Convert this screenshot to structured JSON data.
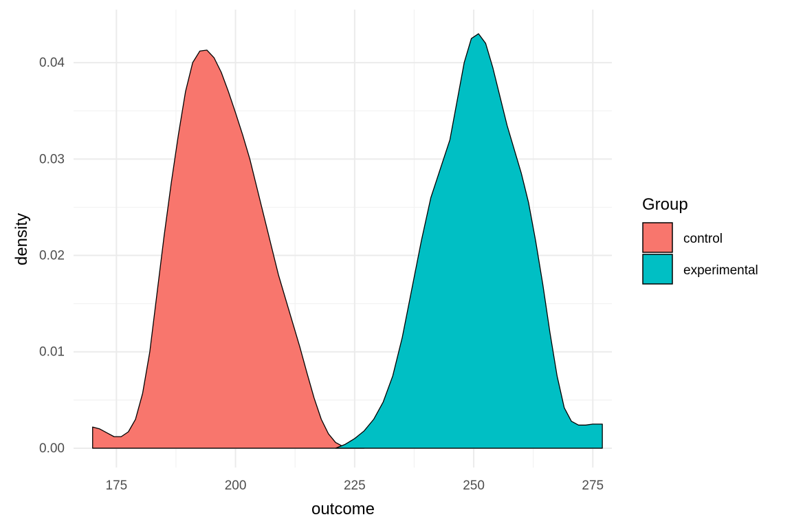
{
  "chart_data": {
    "type": "area",
    "subtype": "density",
    "xlabel": "outcome",
    "ylabel": "density",
    "xlim": [
      166,
      279
    ],
    "ylim": [
      -0.002,
      0.0455
    ],
    "x_ticks": [
      175,
      200,
      225,
      250,
      275
    ],
    "x_tick_labels": [
      "175",
      "200",
      "225",
      "250",
      "275"
    ],
    "x_minor_ticks": [
      187.5,
      212.5,
      237.5,
      262.5
    ],
    "y_ticks": [
      0.0,
      0.01,
      0.02,
      0.03,
      0.04
    ],
    "y_tick_labels": [
      "0.00",
      "0.01",
      "0.02",
      "0.03",
      "0.04"
    ],
    "y_minor_ticks": [
      0.005,
      0.015,
      0.025,
      0.035
    ],
    "grid": true,
    "legend": {
      "title": "Group",
      "position": "right"
    },
    "series": [
      {
        "name": "control",
        "color": "#F8766D",
        "x": [
          170.0,
          171.5,
          173.0,
          174.5,
          176.0,
          177.5,
          179.0,
          180.5,
          182.0,
          183.5,
          185.0,
          186.5,
          188.0,
          189.5,
          191.0,
          192.5,
          194.0,
          195.5,
          197.0,
          198.5,
          200.0,
          201.5,
          203.0,
          204.5,
          206.0,
          207.5,
          209.0,
          210.5,
          212.0,
          213.5,
          215.0,
          216.5,
          218.0,
          219.5,
          221.0,
          222.5,
          224.0,
          225.5,
          227.0
        ],
        "y": [
          0.0022,
          0.002,
          0.0016,
          0.0012,
          0.0012,
          0.0017,
          0.003,
          0.0057,
          0.01,
          0.016,
          0.022,
          0.0275,
          0.0325,
          0.037,
          0.04,
          0.0412,
          0.0413,
          0.0405,
          0.039,
          0.037,
          0.0348,
          0.0325,
          0.03,
          0.027,
          0.024,
          0.021,
          0.018,
          0.0155,
          0.013,
          0.0105,
          0.0078,
          0.0052,
          0.003,
          0.0015,
          0.0006,
          0.0002,
          0.0001,
          0.0,
          0.0
        ]
      },
      {
        "name": "experimental",
        "color": "#00BFC4",
        "x": [
          221.0,
          223.0,
          225.0,
          227.0,
          229.0,
          231.0,
          233.0,
          235.0,
          237.0,
          239.0,
          241.0,
          243.0,
          245.0,
          246.5,
          248.0,
          249.5,
          251.0,
          252.5,
          254.0,
          255.5,
          257.0,
          258.5,
          260.0,
          261.5,
          263.0,
          264.5,
          266.0,
          267.5,
          269.0,
          270.5,
          272.0,
          273.5,
          275.0,
          276.5,
          277.0
        ],
        "y": [
          0.0,
          0.0004,
          0.001,
          0.0018,
          0.003,
          0.0048,
          0.0075,
          0.0115,
          0.0165,
          0.0215,
          0.026,
          0.029,
          0.032,
          0.036,
          0.04,
          0.0425,
          0.043,
          0.042,
          0.0395,
          0.0365,
          0.0335,
          0.031,
          0.0285,
          0.0255,
          0.0215,
          0.017,
          0.012,
          0.0075,
          0.0042,
          0.0028,
          0.0024,
          0.0024,
          0.0025,
          0.0025,
          0.0025
        ]
      }
    ]
  }
}
